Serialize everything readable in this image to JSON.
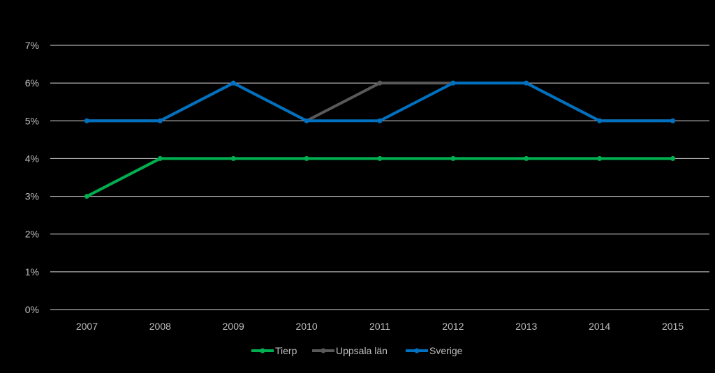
{
  "chart_data": {
    "type": "line",
    "title": "",
    "xlabel": "",
    "ylabel": "",
    "categories": [
      "2007",
      "2008",
      "2009",
      "2010",
      "2011",
      "2012",
      "2013",
      "2014",
      "2015"
    ],
    "ylim": [
      0,
      7
    ],
    "yticks": [
      "0%",
      "1%",
      "2%",
      "3%",
      "4%",
      "5%",
      "6%",
      "7%"
    ],
    "grid": true,
    "legend_position": "bottom",
    "series": [
      {
        "name": "Tierp",
        "color": "#00b050",
        "values": [
          3,
          4,
          4,
          4,
          4,
          4,
          4,
          4,
          4
        ]
      },
      {
        "name": "Uppsala län",
        "color": "#595959",
        "values": [
          5,
          5,
          6,
          5,
          6,
          6,
          6,
          5,
          5
        ]
      },
      {
        "name": "Sverige",
        "color": "#0070c0",
        "values": [
          5,
          5,
          6,
          5,
          5,
          6,
          6,
          5,
          5
        ]
      }
    ],
    "background": "#000000",
    "gridline_color": "#d9d9d9",
    "text_color": "#bfbfbf"
  }
}
